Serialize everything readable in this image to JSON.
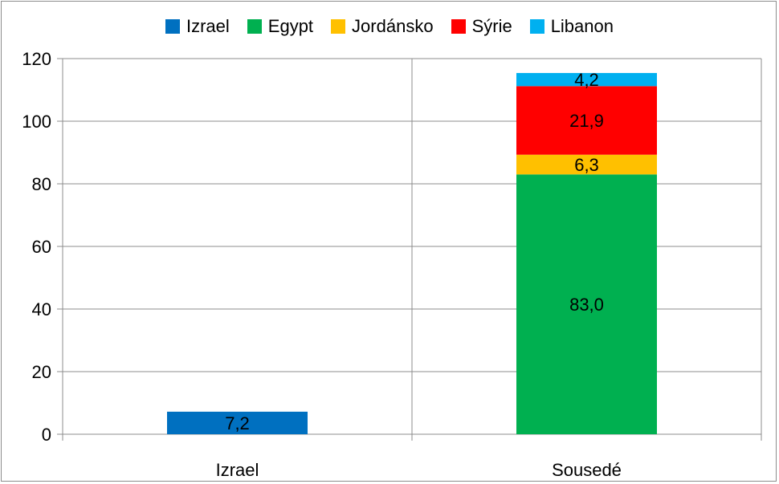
{
  "chart_data": {
    "type": "bar",
    "stacked": true,
    "categories": [
      "Izrael",
      "Sousedé"
    ],
    "series": [
      {
        "name": "Izrael",
        "color": "#0070C0",
        "values": [
          7.2,
          null
        ],
        "labels": [
          "7,2",
          ""
        ]
      },
      {
        "name": "Egypt",
        "color": "#00B050",
        "values": [
          null,
          83.0
        ],
        "labels": [
          "",
          "83,0"
        ]
      },
      {
        "name": "Jordánsko",
        "color": "#FFC000",
        "values": [
          null,
          6.3
        ],
        "labels": [
          "",
          "6,3"
        ]
      },
      {
        "name": "Sýrie",
        "color": "#FF0000",
        "values": [
          null,
          21.9
        ],
        "labels": [
          "",
          "21,9"
        ]
      },
      {
        "name": "Libanon",
        "color": "#00B0F0",
        "values": [
          null,
          4.2
        ],
        "labels": [
          "",
          "4,2"
        ]
      }
    ],
    "ylim": [
      0,
      120
    ],
    "yticks": [
      0,
      20,
      40,
      60,
      80,
      100,
      120
    ],
    "grid": true,
    "legend_position": "top"
  }
}
